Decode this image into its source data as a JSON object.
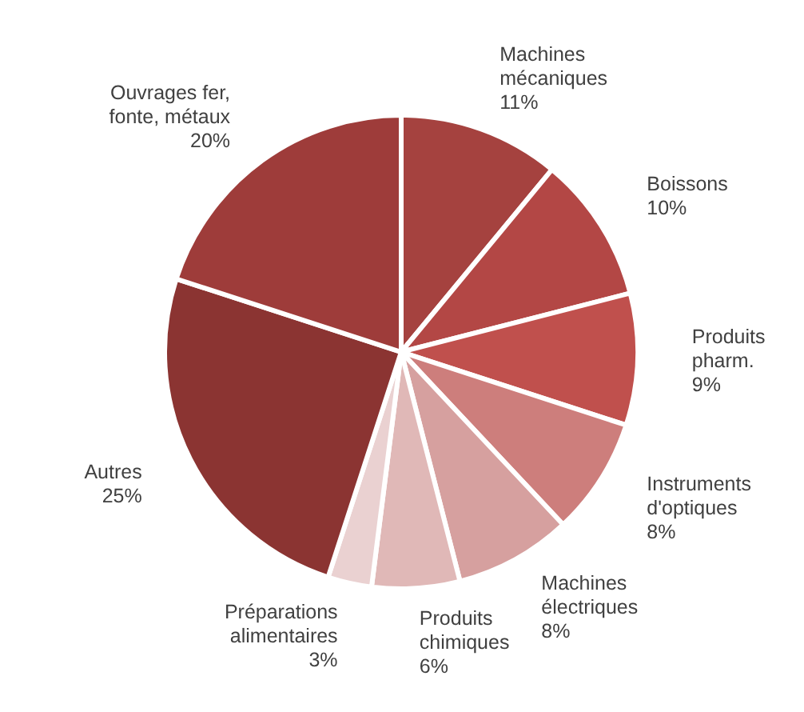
{
  "chart_data": {
    "type": "pie",
    "categories": [
      "Machines mécaniques",
      "Boissons",
      "Produits pharm.",
      "Instruments d'optiques",
      "Machines électriques",
      "Produits chimiques",
      "Préparations alimentaires",
      "Autres",
      "Ouvrages fer, fonte, métaux"
    ],
    "values": [
      11,
      10,
      9,
      8,
      8,
      6,
      3,
      25,
      20
    ],
    "value_labels": [
      "11%",
      "10%",
      "9%",
      "8%",
      "8%",
      "6%",
      "3%",
      "25%",
      "20%"
    ],
    "colors": [
      "#a5423f",
      "#b34745",
      "#c0504d",
      "#cd7e7c",
      "#d6a09f",
      "#e0b8b7",
      "#ead1d1",
      "#8b3432",
      "#9e3c3a"
    ]
  }
}
